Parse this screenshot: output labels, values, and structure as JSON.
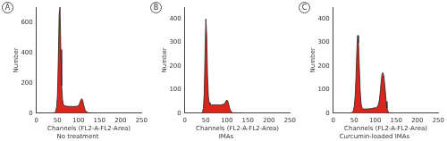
{
  "chart_data": [
    {
      "type": "area",
      "title": "A",
      "y_label": "Number",
      "x_label": "Channels (FL2-A-FL2-Area)",
      "subtitle": "No treatment",
      "x": [
        40,
        42,
        44,
        46,
        48,
        50,
        52,
        54,
        56,
        58,
        60,
        62,
        64,
        66,
        68,
        70,
        72,
        74,
        76,
        78,
        80,
        82,
        84,
        86,
        88,
        90,
        92,
        94,
        96,
        98,
        100,
        102,
        104,
        106,
        108,
        110,
        112,
        114,
        116,
        118,
        120,
        122,
        124,
        126,
        128,
        130,
        132,
        134,
        136,
        138,
        140
      ],
      "series": [
        {
          "color": "#d9261c",
          "values": [
            0,
            2,
            5,
            15,
            40,
            120,
            350,
            650,
            700,
            420,
            180,
            90,
            60,
            50,
            48,
            47,
            46,
            46,
            45,
            45,
            45,
            45,
            44,
            44,
            44,
            44,
            45,
            45,
            45,
            47,
            50,
            60,
            75,
            90,
            95,
            85,
            60,
            35,
            20,
            12,
            8,
            5,
            3,
            2,
            1,
            0,
            0,
            0,
            0,
            0,
            0
          ]
        }
      ],
      "xlim": [
        0,
        250
      ],
      "xticks": [
        0,
        50,
        100,
        150,
        200,
        250
      ],
      "ylim": [
        0,
        700
      ],
      "yticks": [
        0,
        200,
        400,
        600
      ],
      "grid": false
    },
    {
      "type": "area",
      "title": "B",
      "y_label": "Number",
      "x_label": "Channels (FL2-A-FL2-Area)",
      "subtitle": "IMAs",
      "x": [
        40,
        42,
        44,
        46,
        48,
        50,
        52,
        54,
        56,
        58,
        60,
        62,
        64,
        66,
        68,
        70,
        72,
        74,
        76,
        78,
        80,
        82,
        84,
        86,
        88,
        90,
        92,
        94,
        96,
        98,
        100,
        102,
        104,
        106,
        108,
        110,
        112,
        114,
        116,
        118,
        120,
        122,
        124,
        126,
        128,
        130,
        132,
        134,
        136,
        138,
        140
      ],
      "series": [
        {
          "color": "#d9261c",
          "values": [
            0,
            5,
            20,
            80,
            250,
            400,
            330,
            160,
            70,
            45,
            38,
            36,
            35,
            35,
            35,
            35,
            35,
            35,
            35,
            35,
            35,
            35,
            35,
            35,
            36,
            37,
            38,
            40,
            45,
            52,
            56,
            52,
            40,
            25,
            14,
            8,
            4,
            2,
            1,
            0,
            0,
            0,
            0,
            0,
            0,
            0,
            0,
            0,
            0,
            0,
            0
          ]
        }
      ],
      "xlim": [
        0,
        250
      ],
      "xticks": [
        0,
        50,
        100,
        150,
        200,
        250
      ],
      "ylim": [
        0,
        450
      ],
      "yticks": [
        0,
        100,
        200,
        300,
        400
      ],
      "grid": false
    },
    {
      "type": "area",
      "title": "C",
      "y_label": "Number",
      "x_label": "Channels (FL2-A-FL2-Area)",
      "subtitle": "Curcumin-loaded IMAs",
      "x": [
        40,
        42,
        44,
        46,
        48,
        50,
        52,
        54,
        56,
        58,
        60,
        62,
        64,
        66,
        68,
        70,
        72,
        74,
        76,
        78,
        80,
        82,
        84,
        86,
        88,
        90,
        92,
        94,
        96,
        98,
        100,
        102,
        104,
        106,
        108,
        110,
        112,
        114,
        116,
        118,
        120,
        122,
        124,
        126,
        128,
        130,
        132,
        134,
        136,
        138,
        140
      ],
      "series": [
        {
          "color": "#d9261c",
          "values": [
            0,
            0,
            2,
            5,
            12,
            30,
            70,
            150,
            260,
            330,
            300,
            200,
            100,
            45,
            25,
            20,
            18,
            18,
            18,
            18,
            18,
            18,
            18,
            19,
            19,
            20,
            20,
            21,
            22,
            23,
            22,
            24,
            26,
            30,
            40,
            60,
            95,
            135,
            165,
            172,
            160,
            130,
            90,
            50,
            22,
            8,
            3,
            1,
            0,
            0,
            0
          ]
        }
      ],
      "xlim": [
        0,
        250
      ],
      "xticks": [
        0,
        50,
        100,
        150,
        200,
        250
      ],
      "ylim": [
        0,
        450
      ],
      "yticks": [
        0,
        100,
        200,
        300,
        400
      ],
      "grid": false
    }
  ]
}
